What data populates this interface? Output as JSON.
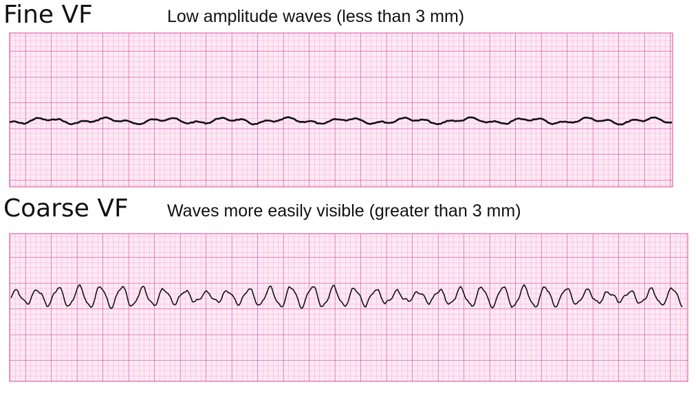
{
  "strips": [
    {
      "title": "Fine VF",
      "description": "Low amplitude waves (less than 3 mm)"
    },
    {
      "title": "Coarse VF",
      "description": "Waves more easily visible (greater than 3 mm)"
    }
  ]
}
